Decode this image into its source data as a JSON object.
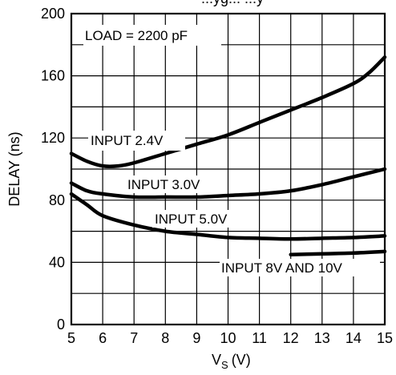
{
  "chart_data": {
    "type": "line",
    "title_partial": "...yg... ...y",
    "xlabel": "V",
    "xlabel_subscript": "S",
    "xlabel_unit": "(V)",
    "ylabel": "DELAY (ns)",
    "xlim": [
      5,
      15
    ],
    "ylim": [
      0,
      200
    ],
    "x_ticks": [
      5,
      6,
      7,
      8,
      9,
      10,
      11,
      12,
      13,
      14,
      15
    ],
    "y_ticks": [
      0,
      40,
      80,
      120,
      160,
      200
    ],
    "grid": true,
    "annotations": [
      {
        "id": "load",
        "text": "LOAD = 2200 pF"
      },
      {
        "id": "in24",
        "text": "INPUT 2.4V"
      },
      {
        "id": "in30",
        "text": "INPUT 3.0V"
      },
      {
        "id": "in50",
        "text": "INPUT 5.0V"
      },
      {
        "id": "in810",
        "text": "INPUT 8V AND 10V"
      }
    ],
    "series": [
      {
        "name": "INPUT 2.4V",
        "points": [
          [
            5,
            110
          ],
          [
            5.5,
            105
          ],
          [
            6,
            102
          ],
          [
            6.5,
            102
          ],
          [
            7,
            104
          ],
          [
            8,
            110
          ],
          [
            9,
            116
          ],
          [
            10,
            122
          ],
          [
            11,
            130
          ],
          [
            12,
            138
          ],
          [
            13,
            146
          ],
          [
            14,
            155
          ],
          [
            14.5,
            162
          ],
          [
            15,
            172
          ]
        ]
      },
      {
        "name": "INPUT 3.0V",
        "points": [
          [
            5,
            91
          ],
          [
            5.5,
            86
          ],
          [
            6,
            84
          ],
          [
            7,
            82
          ],
          [
            8,
            82
          ],
          [
            9,
            82
          ],
          [
            10,
            83
          ],
          [
            11,
            84
          ],
          [
            12,
            86
          ],
          [
            13,
            90
          ],
          [
            14,
            95
          ],
          [
            15,
            100
          ]
        ]
      },
      {
        "name": "INPUT 5.0V",
        "points": [
          [
            5,
            84
          ],
          [
            5.5,
            77
          ],
          [
            6,
            70
          ],
          [
            7,
            64
          ],
          [
            8,
            60
          ],
          [
            9,
            58
          ],
          [
            10,
            56
          ],
          [
            11,
            55.5
          ],
          [
            12,
            55
          ],
          [
            13,
            55.5
          ],
          [
            14,
            56
          ],
          [
            15,
            57
          ]
        ]
      },
      {
        "name": "INPUT 8V AND 10V",
        "points": [
          [
            12,
            45
          ],
          [
            13,
            45.5
          ],
          [
            14,
            46
          ],
          [
            15,
            47
          ]
        ]
      }
    ]
  }
}
